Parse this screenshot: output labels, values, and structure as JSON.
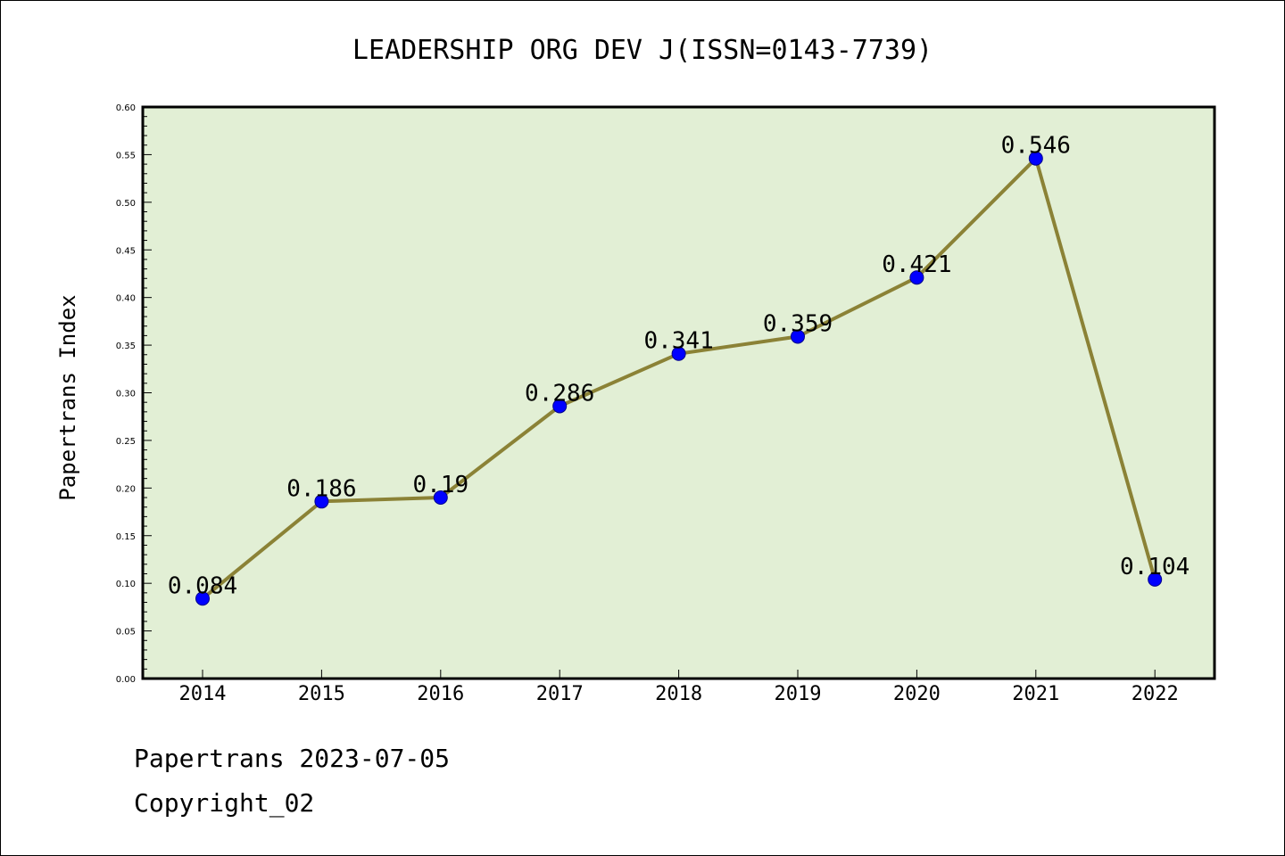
{
  "chart_data": {
    "type": "line",
    "title": "LEADERSHIP ORG DEV J(ISSN=0143-7739)",
    "xlabel": "",
    "ylabel": "Papertrans Index",
    "categories": [
      "2014",
      "2015",
      "2016",
      "2017",
      "2018",
      "2019",
      "2020",
      "2021",
      "2022"
    ],
    "series": [
      {
        "name": "Papertrans Index",
        "values": [
          0.084,
          0.186,
          0.19,
          0.286,
          0.341,
          0.359,
          0.421,
          0.546,
          0.104
        ],
        "labels": [
          "0.084",
          "0.186",
          "0.19",
          "0.286",
          "0.341",
          "0.359",
          "0.421",
          "0.546",
          "0.104"
        ]
      }
    ],
    "ylim": [
      0.0,
      0.6
    ],
    "yticks": [
      "0.00",
      "0.05",
      "0.10",
      "0.15",
      "0.20",
      "0.25",
      "0.30",
      "0.35",
      "0.40",
      "0.45",
      "0.50",
      "0.55",
      "0.60"
    ],
    "grid": false,
    "colors": {
      "plot_background": "#e2efd5",
      "line": "#8b8236",
      "marker": "#0000ff",
      "axis": "#000000"
    }
  },
  "footer": {
    "date_line": "Papertrans 2023-07-05",
    "copyright_line": "Copyright_02"
  }
}
